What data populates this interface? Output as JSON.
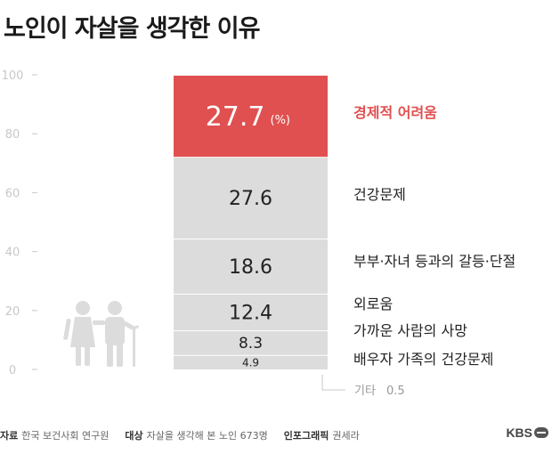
{
  "title": "노인이 자살을 생각한 이유",
  "chart_data": {
    "type": "bar",
    "stacked": true,
    "ylim": [
      0,
      100
    ],
    "yticks": [
      "0",
      "20",
      "40",
      "60",
      "80",
      "100"
    ],
    "grid": false,
    "unit_label": "(%)",
    "categories": [
      {
        "name": "기타",
        "value": 0.5,
        "label": "0.5"
      },
      {
        "name": "배우자 가족의 건강문제",
        "value": 4.9,
        "label": "4.9"
      },
      {
        "name": "가까운 사람의 사망",
        "value": 8.3,
        "label": "8.3"
      },
      {
        "name": "외로움",
        "value": 12.4,
        "label": "12.4"
      },
      {
        "name": "부부·자녀 등과의 갈등·단절",
        "value": 18.6,
        "label": "18.6"
      },
      {
        "name": "건강문제",
        "value": 27.6,
        "label": "27.6"
      },
      {
        "name": "경제적 어려움",
        "value": 27.7,
        "label": "27.7",
        "highlight": true
      }
    ],
    "colors": {
      "highlight": "#e05050",
      "normal": "#dcdcdc",
      "separator": "#ffffff",
      "axis": "#c8c8c8",
      "label": "#222222",
      "muted": "#999999"
    }
  },
  "footer": {
    "source_label": "자료",
    "source_value": "한국 보건사회 연구원",
    "subject_label": "대상",
    "subject_value": "자살을 생각해 본 노인 673명",
    "graphic_label": "인포그래픽",
    "graphic_value": "권세라",
    "brand": "KBS"
  },
  "icon": "elderly-couple-icon"
}
